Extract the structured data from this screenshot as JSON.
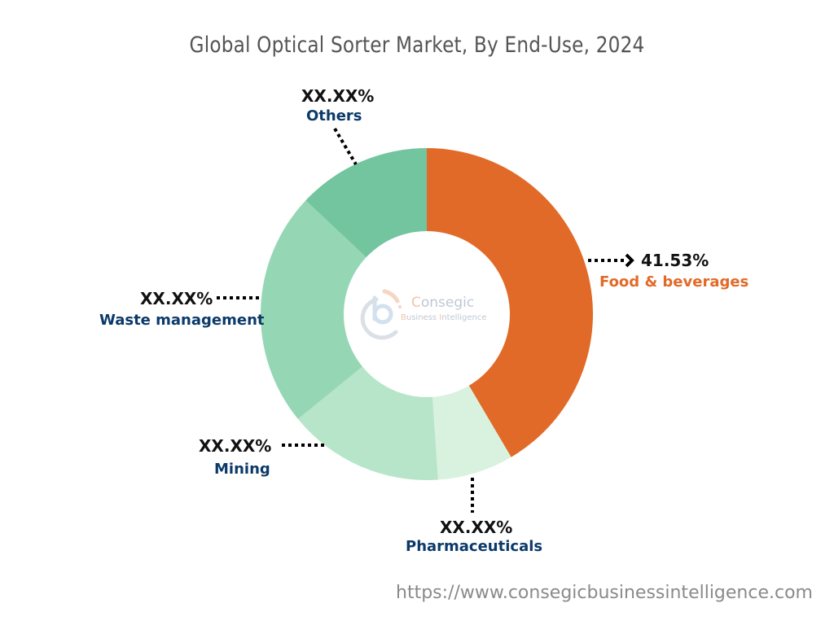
{
  "title": "Global Optical Sorter Market, By End-Use, 2024",
  "footer_url": "https://www.consegicbusinessintelligence.com",
  "logo": {
    "name_first": "C",
    "name_rest": "onsegic",
    "sub_b": "B",
    "sub_rest1": "usiness ",
    "sub_i": "I",
    "sub_rest2": "ntelligence"
  },
  "labels": {
    "food": {
      "pct": "41.53%",
      "name": "Food & beverages"
    },
    "pharma": {
      "pct": "XX.XX%",
      "name": "Pharmaceuticals"
    },
    "mining": {
      "pct": "XX.XX%",
      "name": "Mining"
    },
    "waste": {
      "pct": "XX.XX%",
      "name": "Waste management"
    },
    "others": {
      "pct": "XX.XX%",
      "name": "Others"
    }
  },
  "chart_data": {
    "type": "pie",
    "subtype": "donut",
    "title": "Global Optical Sorter Market, By End-Use, 2024",
    "categories": [
      "Food & beverages",
      "Pharmaceuticals",
      "Mining",
      "Waste management",
      "Others"
    ],
    "values": [
      41.53,
      7.4,
      15.2,
      22.9,
      13.0
    ],
    "value_labels": [
      "41.53%",
      "XX.XX%",
      "XX.XX%",
      "XX.XX%",
      "XX.XX%"
    ],
    "colors": [
      "#e26a28",
      "#d9f2df",
      "#b7e5c9",
      "#95d7b4",
      "#72c59e"
    ],
    "start_angle_deg": 0,
    "direction": "clockwise",
    "legend": "none (callout labels)",
    "note": "Only Food & beverages value is shown; other slice values estimated from geometry"
  },
  "colors": {
    "title": "#555555",
    "category_label": "#0b3a6a",
    "highlight_label": "#e26a28",
    "footer": "#8a8a8a"
  }
}
